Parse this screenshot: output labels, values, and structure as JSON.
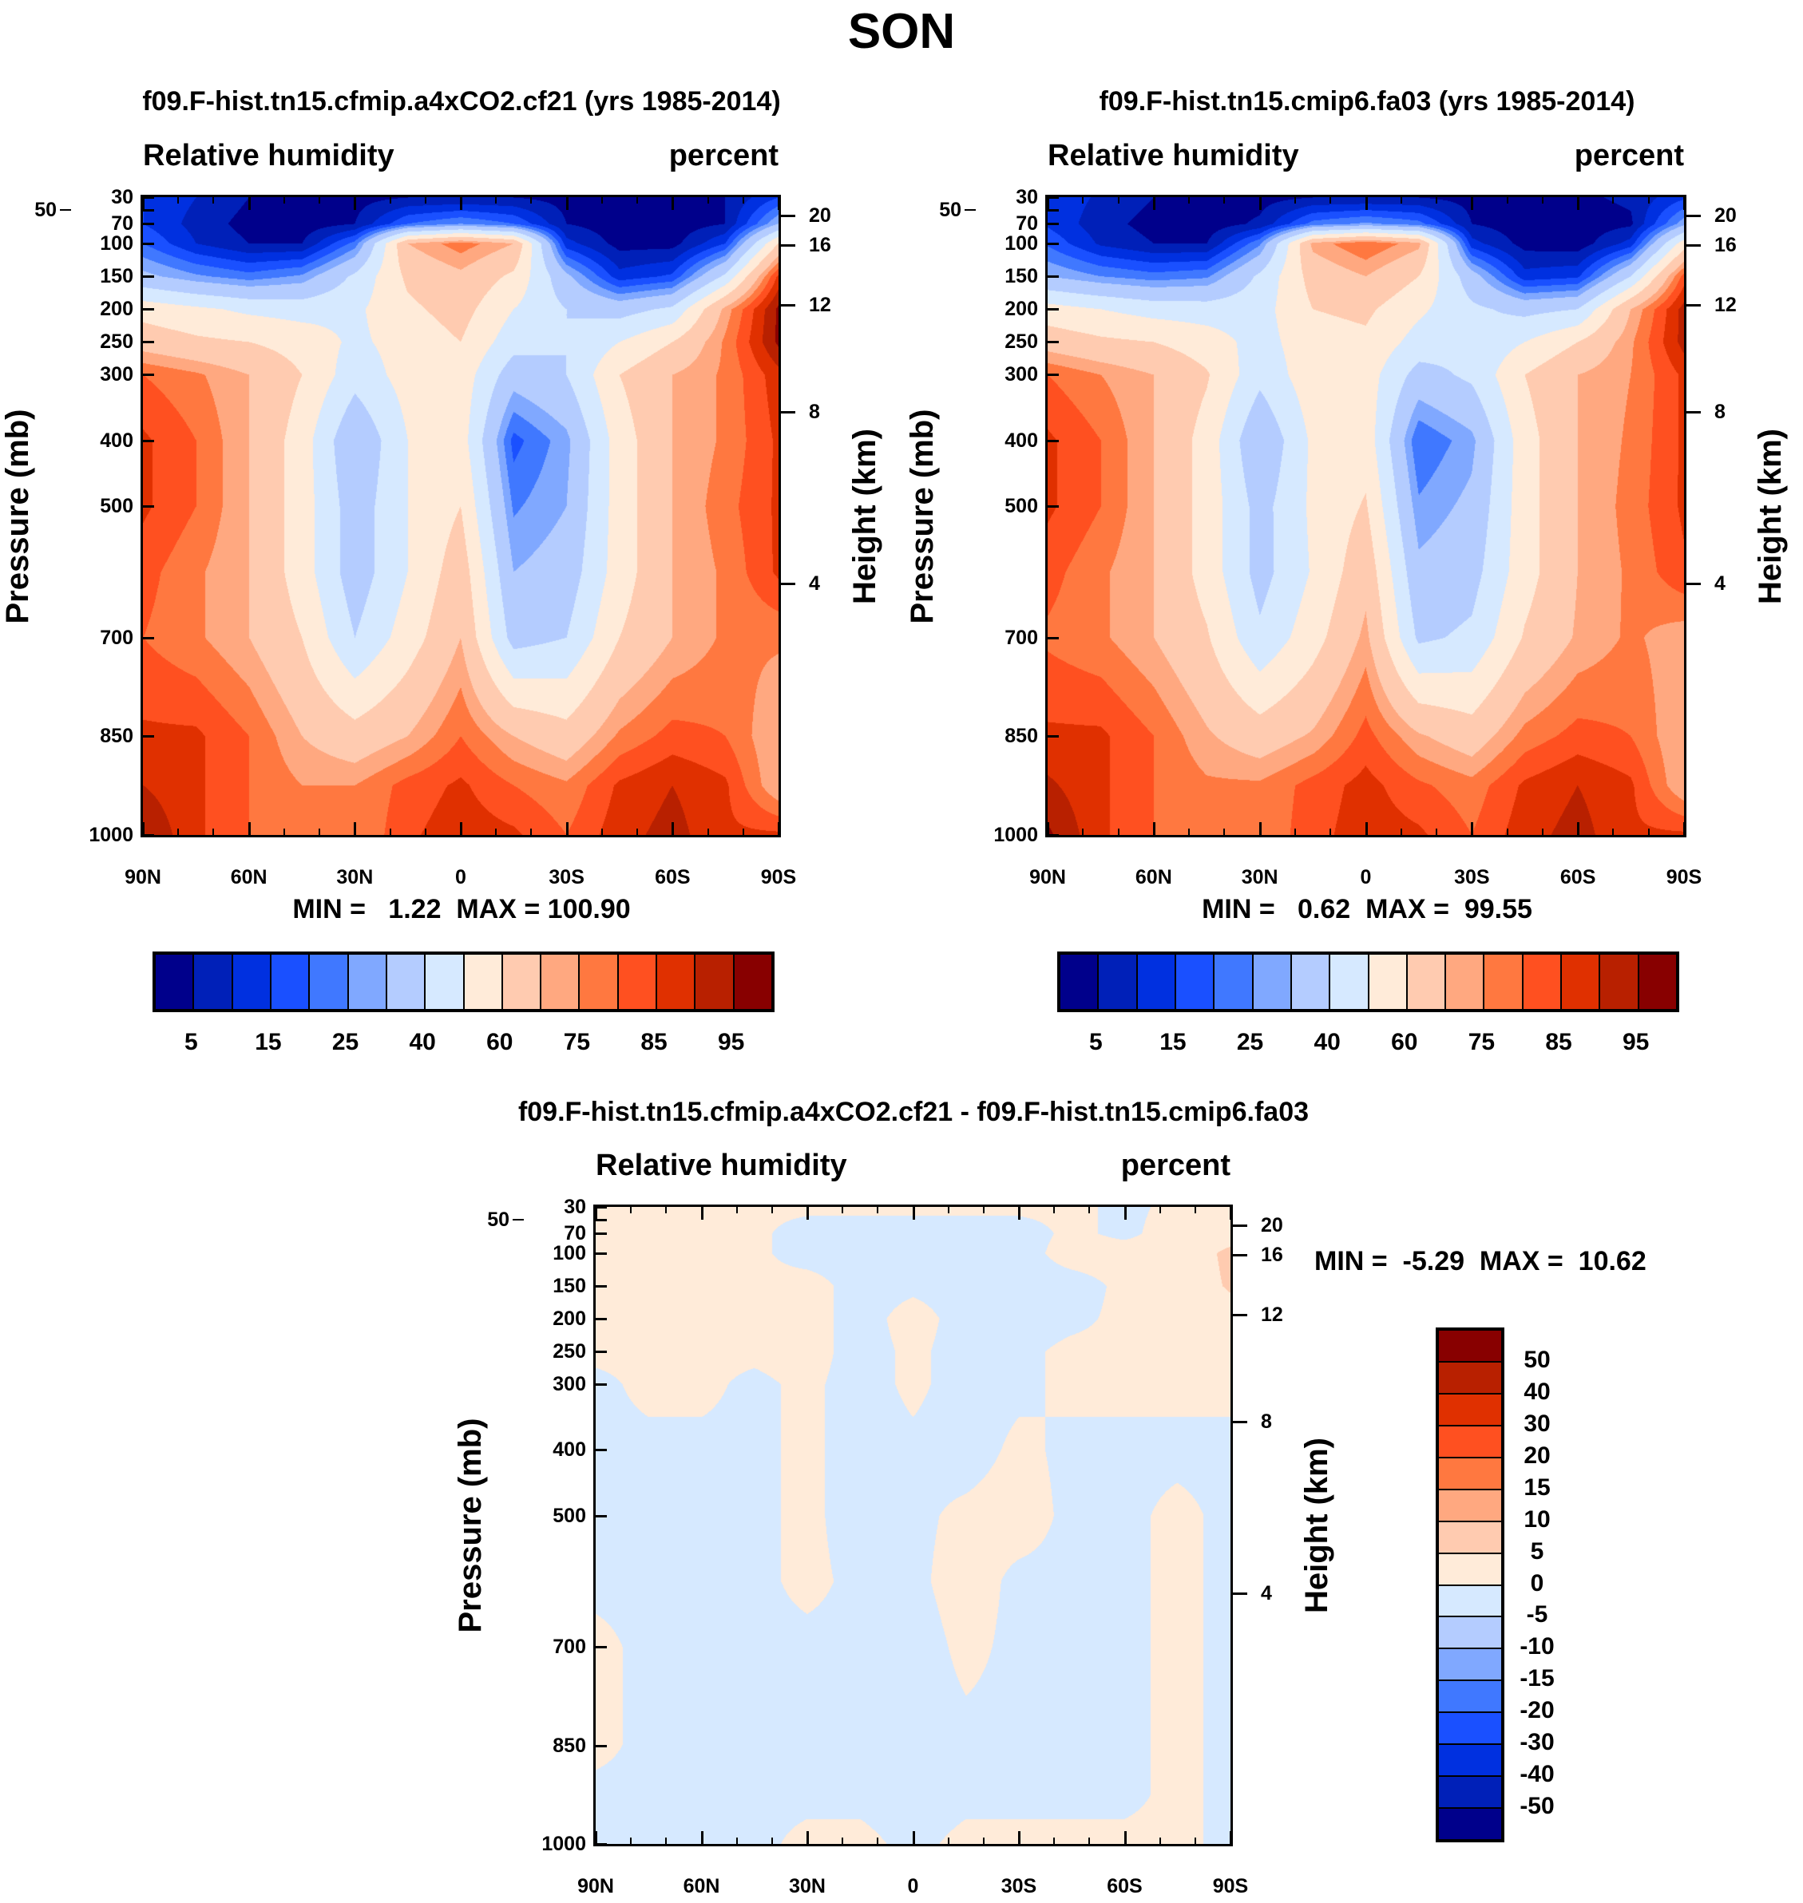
{
  "title": "SON",
  "colors": {
    "palette": [
      "#00008b",
      "#0020b8",
      "#0030e0",
      "#1a50ff",
      "#4078ff",
      "#80a8ff",
      "#b4ccff",
      "#d6e9ff",
      "#ffebd9",
      "#ffcbb0",
      "#ffa880",
      "#ff7840",
      "#ff5020",
      "#e03000",
      "#b82000",
      "#880000"
    ]
  },
  "chart_data": [
    {
      "type": "heatmap",
      "title": "f09.F-hist.tn15.cfmip.a4xCO2.cf21 (yrs 1985-2014)",
      "left_label": "Relative humidity",
      "right_label": "percent",
      "ylabel": "Pressure (mb)",
      "ylabel_right": "Height (km)",
      "min_max": "MIN =   1.22  MAX = 100.90",
      "x_ticks": [
        "90N",
        "60N",
        "30N",
        "0",
        "30S",
        "60S",
        "90S"
      ],
      "y_ticks": [
        30,
        50,
        70,
        100,
        150,
        200,
        250,
        300,
        400,
        500,
        700,
        850,
        1000
      ],
      "height_ticks": [
        {
          "km": 20,
          "p": 58
        },
        {
          "km": 16,
          "p": 103
        },
        {
          "km": 12,
          "p": 194
        },
        {
          "km": 8,
          "p": 357
        },
        {
          "km": 4,
          "p": 618
        }
      ],
      "levels": [
        5,
        10,
        15,
        20,
        25,
        30,
        40,
        50,
        60,
        70,
        75,
        80,
        85,
        90,
        95
      ],
      "colorbar_labels": [
        "5",
        "15",
        "25",
        "40",
        "60",
        "75",
        "85",
        "95"
      ],
      "lat": [
        90,
        75,
        60,
        45,
        30,
        15,
        0,
        -15,
        -30,
        -45,
        -60,
        -75,
        -90
      ],
      "pressure": [
        30,
        70,
        100,
        150,
        200,
        250,
        300,
        400,
        500,
        600,
        700,
        850,
        925,
        1000
      ],
      "values": [
        [
          15,
          10,
          5,
          3,
          3,
          5,
          5,
          5,
          3,
          3,
          3,
          5,
          15
        ],
        [
          15,
          8,
          3,
          2,
          5,
          20,
          25,
          20,
          5,
          2,
          2,
          5,
          30
        ],
        [
          20,
          10,
          5,
          5,
          22,
          70,
          78,
          70,
          12,
          3,
          3,
          15,
          60
        ],
        [
          32,
          26,
          22,
          26,
          42,
          62,
          68,
          58,
          32,
          12,
          16,
          42,
          86
        ],
        [
          56,
          52,
          48,
          46,
          48,
          58,
          64,
          50,
          40,
          36,
          42,
          72,
          96
        ],
        [
          66,
          62,
          60,
          56,
          48,
          54,
          60,
          44,
          40,
          50,
          60,
          76,
          96
        ],
        [
          80,
          76,
          70,
          60,
          44,
          54,
          56,
          34,
          40,
          60,
          70,
          76,
          88
        ],
        [
          86,
          80,
          70,
          55,
          30,
          50,
          55,
          18,
          28,
          55,
          70,
          76,
          86
        ],
        [
          86,
          80,
          70,
          55,
          34,
          50,
          60,
          24,
          30,
          55,
          70,
          78,
          86
        ],
        [
          82,
          76,
          70,
          55,
          34,
          50,
          66,
          30,
          34,
          55,
          70,
          76,
          86
        ],
        [
          80,
          76,
          70,
          60,
          40,
          55,
          70,
          36,
          40,
          60,
          70,
          76,
          76
        ],
        [
          86,
          86,
          80,
          70,
          64,
          70,
          80,
          70,
          64,
          76,
          82,
          80,
          70
        ],
        [
          90,
          86,
          80,
          75,
          75,
          82,
          86,
          80,
          76,
          86,
          90,
          86,
          70
        ],
        [
          95,
          86,
          80,
          75,
          75,
          84,
          88,
          86,
          80,
          88,
          92,
          86,
          86
        ]
      ]
    },
    {
      "type": "heatmap",
      "title": "f09.F-hist.tn15.cmip6.fa03 (yrs 1985-2014)",
      "left_label": "Relative humidity",
      "right_label": "percent",
      "ylabel": "Pressure (mb)",
      "ylabel_right": "Height (km)",
      "min_max": "MIN =   0.62  MAX =  99.55",
      "x_ticks": [
        "90N",
        "60N",
        "30N",
        "0",
        "30S",
        "60S",
        "90S"
      ],
      "y_ticks": [
        30,
        50,
        70,
        100,
        150,
        200,
        250,
        300,
        400,
        500,
        700,
        850,
        1000
      ],
      "height_ticks": [
        {
          "km": 20,
          "p": 58
        },
        {
          "km": 16,
          "p": 103
        },
        {
          "km": 12,
          "p": 194
        },
        {
          "km": 8,
          "p": 357
        },
        {
          "km": 4,
          "p": 618
        }
      ],
      "levels": [
        5,
        10,
        15,
        20,
        25,
        30,
        40,
        50,
        60,
        70,
        75,
        80,
        85,
        90,
        95
      ],
      "colorbar_labels": [
        "5",
        "15",
        "25",
        "40",
        "60",
        "75",
        "85",
        "95"
      ],
      "lat": [
        90,
        75,
        60,
        45,
        30,
        15,
        0,
        -15,
        -30,
        -45,
        -60,
        -75,
        -90
      ],
      "pressure": [
        30,
        70,
        100,
        150,
        200,
        250,
        300,
        400,
        500,
        600,
        700,
        850,
        925,
        1000
      ],
      "values": [
        [
          14,
          9,
          5,
          3,
          3,
          5,
          5,
          5,
          3,
          3,
          4,
          6,
          14
        ],
        [
          14,
          7,
          3,
          2,
          6,
          22,
          26,
          22,
          5,
          2,
          2,
          4,
          28
        ],
        [
          19,
          9,
          5,
          5,
          24,
          72,
          80,
          72,
          12,
          3,
          2,
          12,
          55
        ],
        [
          30,
          25,
          22,
          24,
          42,
          64,
          70,
          60,
          34,
          12,
          14,
          40,
          82
        ],
        [
          54,
          50,
          46,
          45,
          46,
          60,
          62,
          52,
          42,
          37,
          40,
          70,
          92
        ],
        [
          66,
          62,
          60,
          55,
          46,
          56,
          58,
          46,
          42,
          50,
          60,
          74,
          92
        ],
        [
          80,
          75,
          70,
          61,
          43,
          56,
          55,
          36,
          42,
          60,
          70,
          75,
          86
        ],
        [
          86,
          80,
          70,
          56,
          30,
          52,
          56,
          20,
          28,
          56,
          70,
          76,
          86
        ],
        [
          86,
          80,
          70,
          56,
          36,
          52,
          61,
          26,
          32,
          56,
          70,
          77,
          86
        ],
        [
          82,
          76,
          70,
          56,
          36,
          51,
          67,
          32,
          36,
          56,
          70,
          76,
          84
        ],
        [
          79,
          76,
          70,
          61,
          42,
          56,
          72,
          38,
          42,
          61,
          71,
          76,
          72
        ],
        [
          86,
          86,
          80,
          71,
          65,
          71,
          82,
          71,
          65,
          77,
          82,
          80,
          70
        ],
        [
          91,
          86,
          80,
          76,
          76,
          82,
          87,
          81,
          77,
          86,
          90,
          86,
          70
        ],
        [
          96,
          86,
          80,
          76,
          76,
          83,
          88,
          86,
          80,
          88,
          92,
          86,
          86
        ]
      ]
    },
    {
      "type": "heatmap",
      "title": "f09.F-hist.tn15.cfmip.a4xCO2.cf21 - f09.F-hist.tn15.cmip6.fa03",
      "left_label": "Relative humidity",
      "right_label": "percent",
      "ylabel": "Pressure (mb)",
      "ylabel_right": "Height (km)",
      "min_max": "MIN =  -5.29  MAX =  10.62",
      "x_ticks": [
        "90N",
        "60N",
        "30N",
        "0",
        "30S",
        "60S",
        "90S"
      ],
      "y_ticks": [
        30,
        50,
        70,
        100,
        150,
        200,
        250,
        300,
        400,
        500,
        700,
        850,
        1000
      ],
      "height_ticks": [
        {
          "km": 20,
          "p": 58
        },
        {
          "km": 16,
          "p": 103
        },
        {
          "km": 12,
          "p": 194
        },
        {
          "km": 8,
          "p": 357
        },
        {
          "km": 4,
          "p": 618
        }
      ],
      "levels": [
        -50,
        -40,
        -30,
        -20,
        -15,
        -10,
        -5,
        0,
        5,
        10,
        15,
        20,
        30,
        40,
        50
      ],
      "colorbar_labels": [
        "50",
        "40",
        "30",
        "20",
        "15",
        "10",
        "5",
        "0",
        "-5",
        "-10",
        "-15",
        "-20",
        "-30",
        "-40",
        "-50"
      ],
      "lat": [
        90,
        75,
        60,
        45,
        30,
        15,
        0,
        -15,
        -30,
        -45,
        -60,
        -75,
        -90
      ],
      "pressure": [
        30,
        70,
        100,
        150,
        200,
        250,
        300,
        400,
        500,
        600,
        700,
        850,
        925,
        1000
      ],
      "values": [
        [
          2,
          2,
          2,
          1,
          1,
          1,
          1,
          1,
          1,
          1,
          -1,
          1,
          2
        ],
        [
          1,
          1,
          1,
          1,
          -2,
          -2,
          -2,
          -2,
          -2,
          1,
          -1,
          2,
          3
        ],
        [
          1,
          1,
          1,
          1,
          -2,
          -2,
          -2,
          -2,
          -2,
          2,
          2,
          2,
          6
        ],
        [
          1,
          1,
          1,
          1,
          2,
          -2,
          -1,
          -2,
          -2,
          -2,
          1,
          2,
          5.5
        ],
        [
          3,
          1,
          1,
          1,
          2,
          -2,
          2,
          -2,
          -2,
          -1,
          1,
          1,
          3
        ],
        [
          1,
          1,
          1,
          1,
          2,
          -2,
          1,
          -2,
          -1,
          1,
          1,
          1,
          2
        ],
        [
          -1,
          1,
          1,
          -1,
          1,
          -2,
          1,
          -2,
          -1,
          1,
          1,
          1,
          1
        ],
        [
          -1,
          -1,
          -1,
          -1,
          1,
          -2,
          -1,
          -2,
          1,
          -1,
          -1,
          -1,
          -1
        ],
        [
          -1,
          -1,
          -1,
          -1,
          1,
          -2,
          -1,
          1,
          2,
          -1,
          -1,
          1,
          -1
        ],
        [
          -1,
          -1,
          -1,
          -1,
          1,
          -1,
          -1,
          2,
          -1,
          -1,
          -1,
          1,
          -1
        ],
        [
          1,
          -1,
          -1,
          -1,
          -1,
          -1,
          -2,
          1,
          -1,
          -1,
          -1,
          1,
          -1
        ],
        [
          1,
          -1,
          -1,
          -1,
          -1,
          -1,
          -2,
          -1,
          -1,
          -1,
          -1,
          1,
          -1
        ],
        [
          -1,
          -1,
          -1,
          -1,
          -1,
          -1,
          -2,
          -1,
          -1,
          -1,
          -1,
          1,
          -1
        ],
        [
          -1,
          -1,
          -1,
          -1,
          1,
          1,
          -1,
          1,
          1,
          1,
          1,
          1,
          -1
        ]
      ]
    }
  ]
}
